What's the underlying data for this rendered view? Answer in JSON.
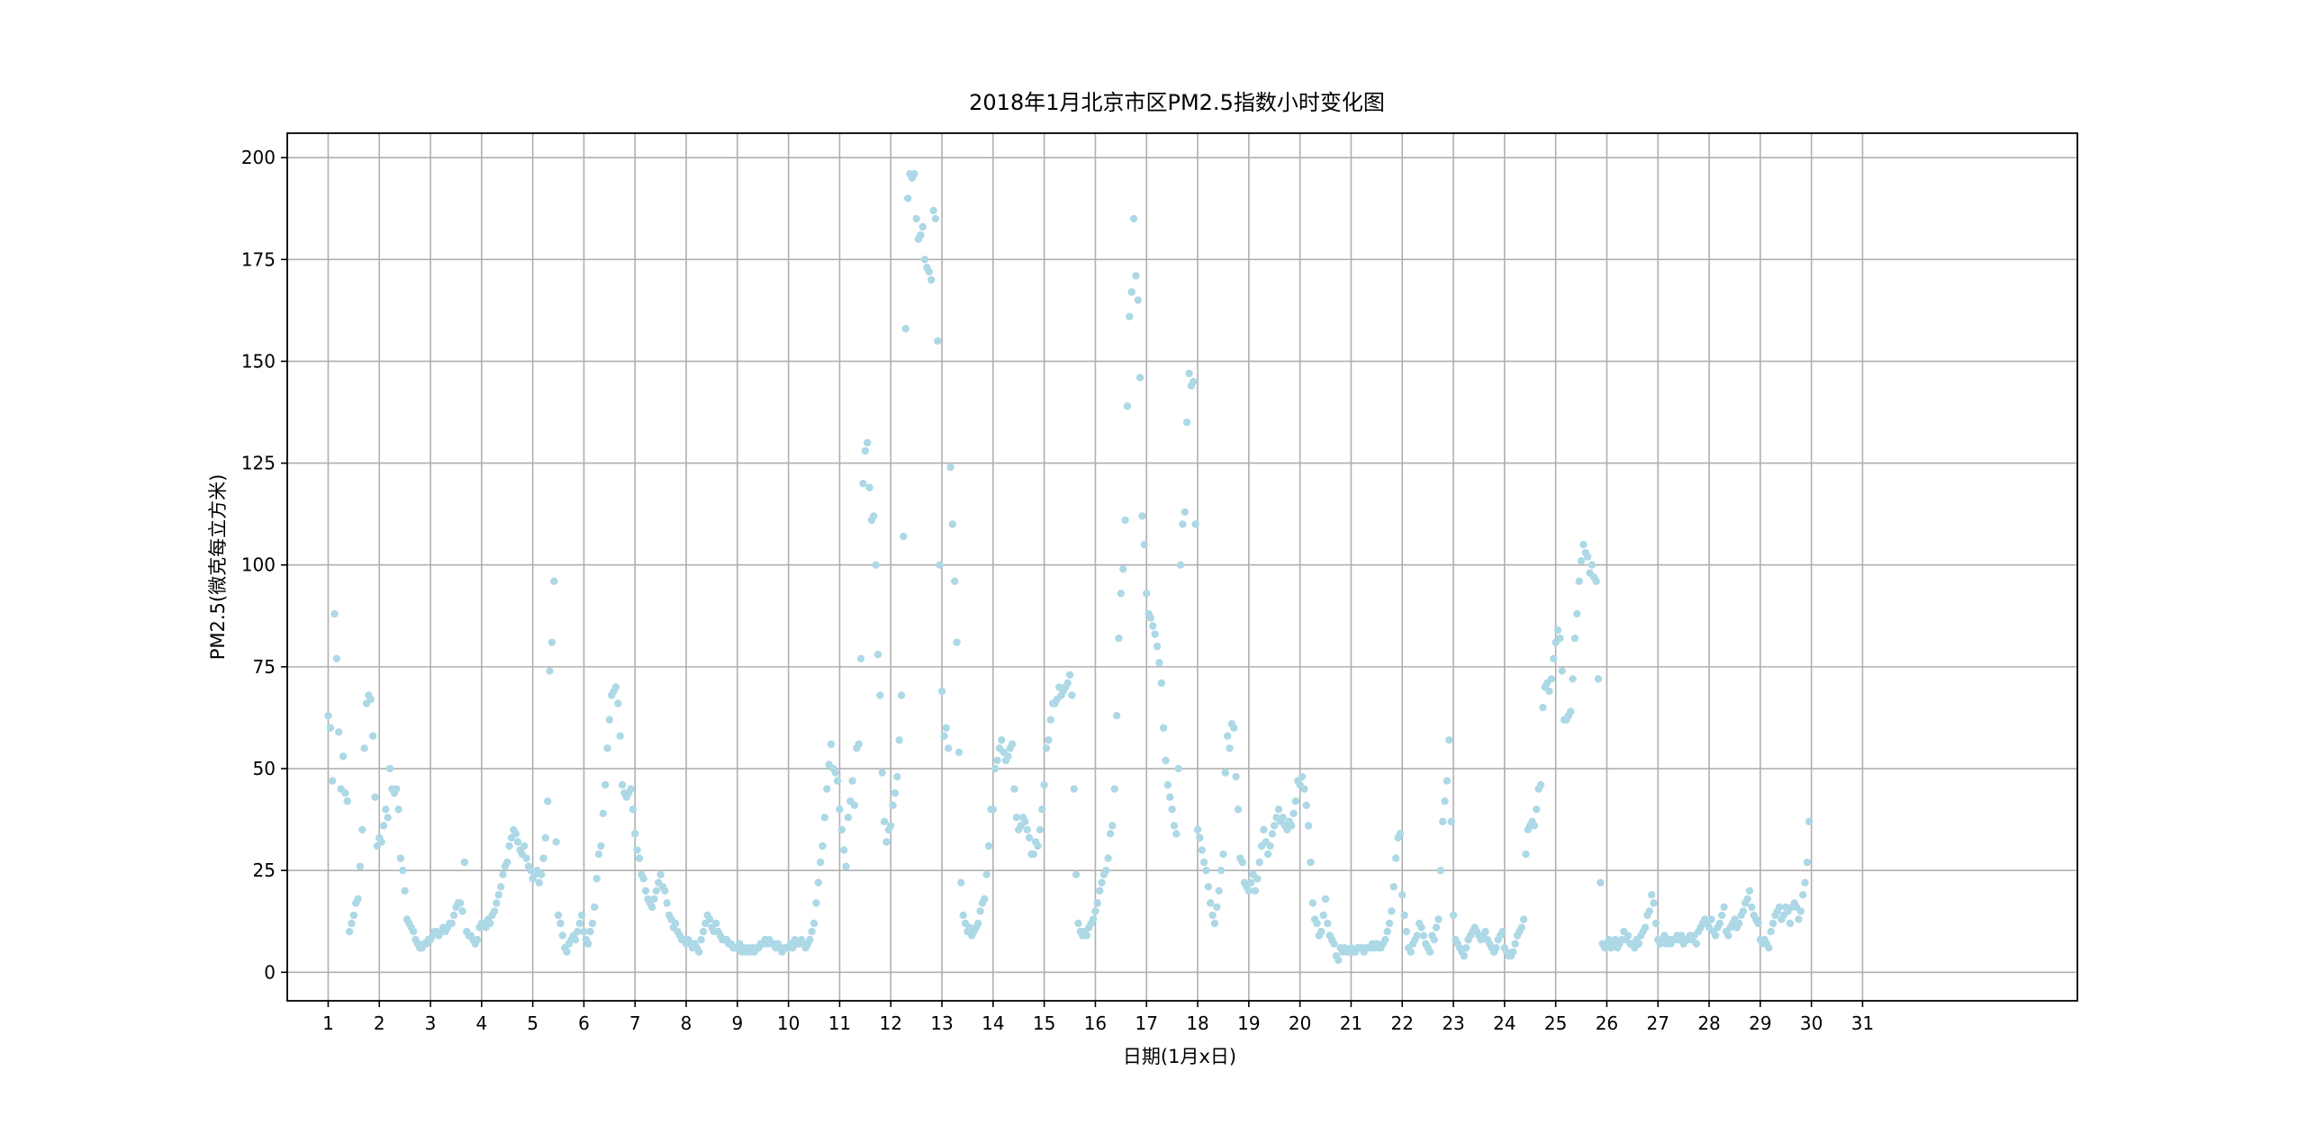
{
  "chart_data": {
    "type": "scatter",
    "title": "2018年1月北京市区PM2.5指数小时变化图",
    "xlabel": "日期(1月x日)",
    "ylabel": "PM2.5(微克每立方米)",
    "x_ticks": [
      "1",
      "2",
      "3",
      "4",
      "5",
      "6",
      "7",
      "8",
      "9",
      "10",
      "11",
      "12",
      "13",
      "14",
      "15",
      "16",
      "17",
      "18",
      "19",
      "20",
      "21",
      "22",
      "23",
      "24",
      "25",
      "26",
      "27",
      "28",
      "29",
      "30",
      "31"
    ],
    "y_ticks": [
      "0",
      "25",
      "50",
      "75",
      "100",
      "125",
      "150",
      "175",
      "200"
    ],
    "xlim": [
      -0.8,
      34.2
    ],
    "ylim": [
      -7,
      206
    ],
    "grid": true,
    "marker_color": "#add8e6",
    "series": [
      {
        "hourly_daily_values": [
          [
            63,
            60,
            47,
            88,
            77,
            59,
            45,
            53,
            44,
            42,
            10,
            12,
            14,
            17,
            18,
            26,
            35,
            55,
            66,
            68,
            67,
            58,
            43,
            31
          ],
          [
            33,
            32,
            36,
            40,
            38,
            50,
            45,
            44,
            45,
            40,
            28,
            25,
            20,
            13,
            12,
            11,
            10,
            8,
            7,
            6,
            6,
            7,
            7,
            8
          ],
          [
            8,
            9,
            10,
            10,
            9,
            10,
            11,
            10,
            11,
            12,
            12,
            14,
            16,
            17,
            17,
            15,
            27,
            10,
            9,
            9,
            8,
            7,
            8,
            11
          ],
          [
            12,
            12,
            11,
            13,
            12,
            14,
            15,
            17,
            19,
            21,
            24,
            26,
            27,
            31,
            33,
            35,
            34,
            32,
            30,
            29,
            31,
            28,
            26,
            25
          ],
          [
            23,
            24,
            25,
            22,
            24,
            28,
            33,
            42,
            74,
            81,
            96,
            32,
            14,
            12,
            9,
            6,
            5,
            7,
            8,
            9,
            8,
            10,
            12,
            14
          ],
          [
            10,
            8,
            7,
            10,
            12,
            16,
            23,
            29,
            31,
            39,
            46,
            55,
            62,
            68,
            69,
            70,
            66,
            58,
            46,
            44,
            43,
            44,
            45,
            40
          ],
          [
            34,
            30,
            28,
            24,
            23,
            20,
            18,
            17,
            16,
            18,
            20,
            22,
            24,
            21,
            20,
            17,
            14,
            13,
            11,
            12,
            10,
            9,
            8,
            8
          ],
          [
            7,
            8,
            7,
            6,
            7,
            6,
            5,
            8,
            10,
            12,
            14,
            13,
            11,
            10,
            12,
            10,
            9,
            8,
            8,
            8,
            7,
            7,
            6,
            6
          ],
          [
            6,
            7,
            5,
            6,
            5,
            6,
            5,
            6,
            5,
            6,
            6,
            7,
            7,
            8,
            7,
            8,
            7,
            7,
            6,
            7,
            6,
            5,
            6,
            6
          ],
          [
            6,
            7,
            6,
            8,
            7,
            7,
            8,
            7,
            6,
            7,
            8,
            10,
            12,
            17,
            22,
            27,
            31,
            38,
            45,
            51,
            56,
            50,
            49,
            47
          ],
          [
            40,
            35,
            30,
            26,
            38,
            42,
            47,
            41,
            55,
            56,
            77,
            120,
            128,
            130,
            119,
            111,
            112,
            100,
            78,
            68,
            49,
            37,
            32,
            35
          ],
          [
            36,
            41,
            44,
            48,
            57,
            68,
            107,
            158,
            190,
            196,
            195,
            196,
            185,
            180,
            181,
            183,
            175,
            173,
            172,
            170,
            187,
            185,
            155,
            100
          ],
          [
            69,
            58,
            60,
            55,
            124,
            110,
            96,
            81,
            54,
            22,
            14,
            12,
            10,
            11,
            9,
            10,
            11,
            12,
            15,
            17,
            18,
            24,
            31,
            40
          ],
          [
            40,
            50,
            52,
            55,
            57,
            54,
            52,
            53,
            55,
            56,
            45,
            38,
            35,
            36,
            38,
            37,
            35,
            33,
            29,
            29,
            32,
            31,
            35,
            40
          ],
          [
            46,
            55,
            57,
            62,
            66,
            66,
            67,
            70,
            68,
            69,
            70,
            71,
            73,
            68,
            45,
            24,
            12,
            10,
            9,
            10,
            9,
            11,
            12,
            13
          ],
          [
            15,
            17,
            20,
            22,
            24,
            25,
            28,
            34,
            36,
            45,
            63,
            82,
            93,
            99,
            111,
            139,
            161,
            167,
            185,
            171,
            165,
            146,
            112,
            105
          ],
          [
            93,
            88,
            87,
            85,
            83,
            80,
            76,
            71,
            60,
            52,
            46,
            43,
            40,
            36,
            34,
            50,
            100,
            110,
            113,
            135,
            147,
            144,
            145,
            110
          ],
          [
            35,
            33,
            30,
            27,
            25,
            21,
            17,
            14,
            12,
            16,
            20,
            25,
            29,
            49,
            58,
            55,
            61,
            60,
            48,
            40,
            28,
            27,
            22,
            21
          ],
          [
            20,
            22,
            24,
            20,
            23,
            27,
            31,
            35,
            32,
            29,
            31,
            34,
            36,
            38,
            40,
            37,
            38,
            36,
            35,
            37,
            36,
            39,
            42,
            47
          ],
          [
            46,
            48,
            45,
            41,
            36,
            27,
            17,
            13,
            12,
            9,
            10,
            14,
            18,
            12,
            9,
            8,
            7,
            4,
            3,
            6,
            5,
            6,
            5,
            5
          ],
          [
            6,
            5,
            5,
            6,
            6,
            6,
            5,
            6,
            6,
            6,
            7,
            6,
            7,
            6,
            6,
            7,
            8,
            10,
            12,
            15,
            21,
            28,
            33,
            34
          ],
          [
            19,
            14,
            10,
            6,
            5,
            7,
            8,
            9,
            12,
            11,
            9,
            7,
            6,
            5,
            9,
            8,
            11,
            13,
            25,
            37,
            42,
            47,
            57,
            37
          ],
          [
            14,
            8,
            7,
            6,
            5,
            4,
            6,
            8,
            9,
            10,
            11,
            10,
            9,
            8,
            9,
            10,
            8,
            7,
            6,
            5,
            6,
            8,
            9,
            10
          ],
          [
            6,
            5,
            4,
            4,
            5,
            7,
            9,
            10,
            11,
            13,
            29,
            35,
            36,
            37,
            36,
            40,
            45,
            46,
            65,
            70,
            71,
            69,
            72,
            77
          ],
          [
            81,
            84,
            82,
            74,
            62,
            62,
            63,
            64,
            72,
            82,
            88,
            96,
            101,
            105,
            103,
            102,
            98,
            100,
            97,
            96,
            72,
            22,
            7,
            6
          ],
          [
            7,
            8,
            6,
            7,
            8,
            6,
            7,
            8,
            10,
            8,
            9,
            7,
            7,
            6,
            8,
            7,
            9,
            10,
            11,
            14,
            15,
            19,
            17,
            12
          ],
          [
            8,
            7,
            8,
            9,
            7,
            8,
            7,
            8,
            8,
            9,
            8,
            9,
            7,
            8,
            8,
            9,
            8,
            9,
            7,
            10,
            11,
            12,
            13,
            12
          ],
          [
            11,
            13,
            10,
            9,
            11,
            12,
            14,
            16,
            10,
            9,
            11,
            12,
            13,
            11,
            12,
            14,
            15,
            17,
            18,
            20,
            16,
            14,
            13,
            12
          ],
          [
            8,
            7,
            8,
            7,
            6,
            10,
            12,
            14,
            15,
            16,
            13,
            14,
            16,
            15,
            12,
            16,
            17,
            16,
            13,
            15,
            19,
            22,
            27,
            37
          ]
        ]
      }
    ]
  }
}
